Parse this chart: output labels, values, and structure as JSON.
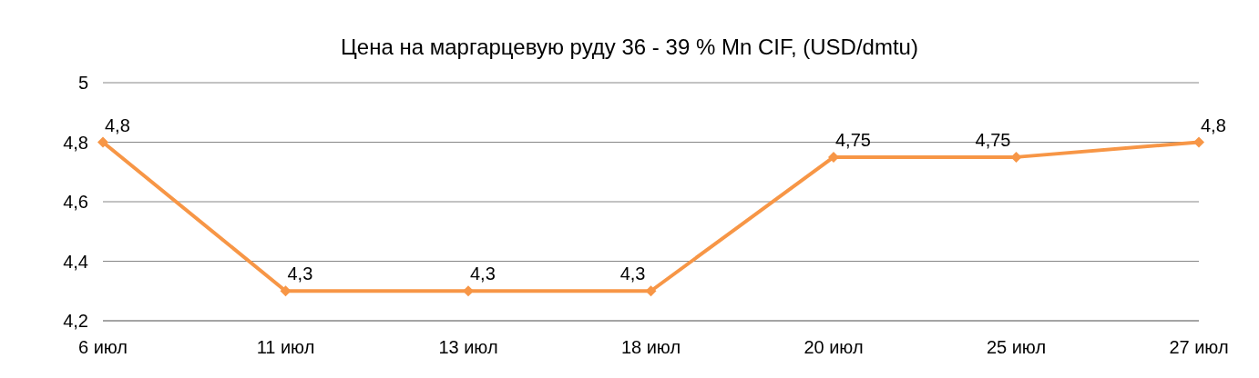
{
  "chart_data": {
    "type": "line",
    "title": "Цена на маргарцевую руду 36 - 39 % Mn CIF, (USD/dmtu)",
    "categories": [
      "6 июл",
      "11 июл",
      "13 июл",
      "18 июл",
      "20 июл",
      "25 июл",
      "27 июл"
    ],
    "series": [
      {
        "color": "#f79646",
        "values": [
          4.8,
          4.3,
          4.3,
          4.3,
          4.75,
          4.75,
          4.8
        ],
        "value_labels": [
          "4,8",
          "4,3",
          "4,3",
          "4,3",
          "4,75",
          "4,75",
          "4,8"
        ]
      }
    ],
    "ylim": [
      4.2,
      5
    ],
    "yticks": [
      {
        "value": 4.2,
        "label": "4,2"
      },
      {
        "value": 4.4,
        "label": "4,4"
      },
      {
        "value": 4.6,
        "label": "4,6"
      },
      {
        "value": 4.8,
        "label": "4,8"
      },
      {
        "value": 5,
        "label": "5"
      }
    ],
    "grid": "y",
    "marker": "diamond",
    "line_style": "solid",
    "legend": false
  }
}
